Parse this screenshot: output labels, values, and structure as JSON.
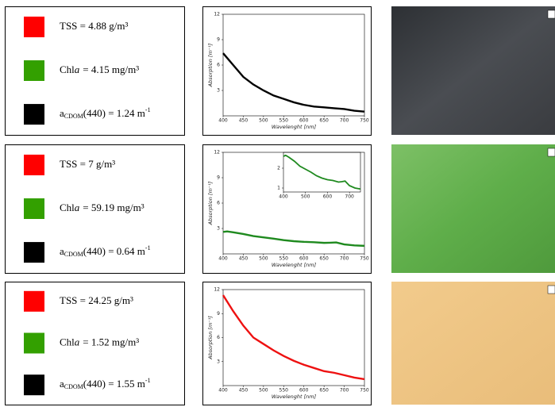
{
  "panels": [
    {
      "tss": "TSS = 4.88 g/m³",
      "chl": {
        "name": "Chl",
        "italic": "a",
        "value": "= 4.15 mg/m³"
      },
      "cdom": {
        "name": "a",
        "sub": "CDOM",
        "value": "(440) = 1.24 m",
        "sup": "-1"
      }
    },
    {
      "tss": "TSS = 7 g/m³",
      "chl": {
        "name": "Chl",
        "italic": "a",
        "value": "= 59.19 mg/m³"
      },
      "cdom": {
        "name": "a",
        "sub": "CDOM",
        "value": "(440) = 0.64 m",
        "sup": "-1"
      }
    },
    {
      "tss": "TSS = 24.25 g/m³",
      "chl": {
        "name": "Chl",
        "italic": "a",
        "value": "= 1.52 mg/m³"
      },
      "cdom": {
        "name": "a",
        "sub": "CDOM",
        "value": "(440) = 1.55 m",
        "sup": "-1"
      }
    }
  ],
  "chart_data": [
    {
      "type": "line",
      "xlabel": "Wavelenght [nm]",
      "ylabel": "Absorption [m⁻¹]",
      "x": [
        400,
        425,
        450,
        475,
        500,
        525,
        550,
        575,
        600,
        625,
        650,
        675,
        700,
        725,
        750
      ],
      "series": [
        {
          "color": "#000000",
          "values": [
            7.4,
            6.0,
            4.6,
            3.7,
            3.0,
            2.4,
            2.0,
            1.6,
            1.3,
            1.1,
            1.0,
            0.9,
            0.8,
            0.6,
            0.5
          ]
        }
      ],
      "xlim": [
        400,
        750
      ],
      "ylim": [
        0,
        12
      ],
      "xticks": [
        400,
        450,
        500,
        550,
        600,
        650,
        700,
        750
      ],
      "yticks": [
        3,
        6,
        9,
        12
      ]
    },
    {
      "type": "line",
      "xlabel": "Wavelenght [nm]",
      "ylabel": "Absorption [m⁻¹]",
      "x": [
        400,
        410,
        425,
        450,
        475,
        500,
        525,
        550,
        575,
        600,
        625,
        650,
        665,
        680,
        700,
        725,
        750
      ],
      "series": [
        {
          "color": "#1f8a1f",
          "values": [
            2.6,
            2.65,
            2.55,
            2.35,
            2.1,
            1.95,
            1.8,
            1.62,
            1.5,
            1.42,
            1.38,
            1.3,
            1.32,
            1.35,
            1.12,
            1.0,
            0.95
          ]
        }
      ],
      "xlim": [
        400,
        750
      ],
      "ylim": [
        0,
        12
      ],
      "xticks": [
        400,
        450,
        500,
        550,
        600,
        650,
        700,
        750
      ],
      "yticks": [
        3,
        6,
        9,
        12
      ],
      "inset": {
        "xlim": [
          400,
          750
        ],
        "ylim": [
          0.8,
          2.8
        ],
        "xticks": [
          400,
          500,
          600,
          700
        ],
        "yticks": [
          1,
          2
        ]
      }
    },
    {
      "type": "line",
      "xlabel": "Wavelenght [nm]",
      "ylabel": "Absorption [m⁻¹]",
      "x": [
        400,
        425,
        450,
        475,
        500,
        525,
        550,
        575,
        600,
        625,
        650,
        675,
        700,
        725,
        750
      ],
      "series": [
        {
          "color": "#ee1111",
          "values": [
            11.3,
            9.3,
            7.5,
            6.0,
            5.2,
            4.4,
            3.7,
            3.1,
            2.6,
            2.2,
            1.8,
            1.6,
            1.3,
            1.0,
            0.8
          ]
        }
      ],
      "xlim": [
        400,
        750
      ],
      "ylim": [
        0,
        12
      ],
      "xticks": [
        400,
        450,
        500,
        550,
        600,
        650,
        700,
        750
      ],
      "yticks": [
        3,
        6,
        9,
        12
      ]
    }
  ]
}
